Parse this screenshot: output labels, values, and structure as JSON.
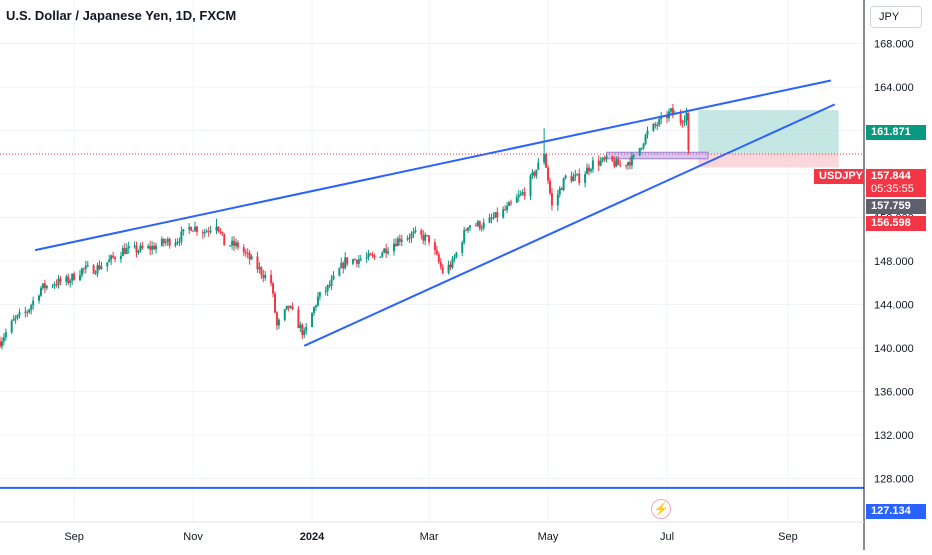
{
  "chart_data": {
    "type": "candlestick",
    "title": "U.S. Dollar / Japanese Yen, 1D, FXCM",
    "currency": "JPY",
    "symbol_label": "USDJPY",
    "ylim": [
      124.0,
      172.0
    ],
    "y_ticks": [
      "168.000",
      "164.000",
      "160.000",
      "156.000",
      "152.000",
      "148.000",
      "144.000",
      "140.000",
      "136.000",
      "132.000",
      "128.000"
    ],
    "y_tick_values": [
      168,
      164,
      160,
      156,
      152,
      148,
      144,
      140,
      136,
      132,
      128
    ],
    "x_range": [
      "2023-07-25",
      "2024-10-10"
    ],
    "x_ticks": [
      {
        "label": "Sep",
        "date": "2023-09-01"
      },
      {
        "label": "Nov",
        "date": "2023-11-01"
      },
      {
        "label": "2024",
        "date": "2024-01-01",
        "bold": true
      },
      {
        "label": "Mar",
        "date": "2024-03-01"
      },
      {
        "label": "May",
        "date": "2024-05-01"
      },
      {
        "label": "Jul",
        "date": "2024-07-01"
      },
      {
        "label": "Sep",
        "date": "2024-09-01"
      }
    ],
    "close_path": [
      [
        "2023-07-25",
        140.6
      ],
      [
        "2023-08-01",
        142.5
      ],
      [
        "2023-08-08",
        143.4
      ],
      [
        "2023-08-15",
        145.5
      ],
      [
        "2023-08-22",
        146.0
      ],
      [
        "2023-08-29",
        146.2
      ],
      [
        "2023-09-05",
        147.2
      ],
      [
        "2023-09-12",
        147.3
      ],
      [
        "2023-09-19",
        148.0
      ],
      [
        "2023-09-26",
        149.0
      ],
      [
        "2023-10-03",
        149.0
      ],
      [
        "2023-10-10",
        149.2
      ],
      [
        "2023-10-17",
        149.7
      ],
      [
        "2023-10-24",
        150.0
      ],
      [
        "2023-10-31",
        151.2
      ],
      [
        "2023-11-07",
        150.7
      ],
      [
        "2023-11-13",
        151.5
      ],
      [
        "2023-11-17",
        149.6
      ],
      [
        "2023-11-24",
        149.4
      ],
      [
        "2023-11-30",
        148.2
      ],
      [
        "2023-12-06",
        147.0
      ],
      [
        "2023-12-11",
        146.0
      ],
      [
        "2023-12-14",
        142.0
      ],
      [
        "2023-12-20",
        143.8
      ],
      [
        "2023-12-28",
        141.2
      ],
      [
        "2024-01-04",
        144.6
      ],
      [
        "2024-01-10",
        145.7
      ],
      [
        "2024-01-18",
        148.0
      ],
      [
        "2024-01-26",
        148.2
      ],
      [
        "2024-02-02",
        148.3
      ],
      [
        "2024-02-09",
        149.3
      ],
      [
        "2024-02-16",
        150.2
      ],
      [
        "2024-02-23",
        150.4
      ],
      [
        "2024-03-01",
        150.0
      ],
      [
        "2024-03-08",
        147.0
      ],
      [
        "2024-03-13",
        147.8
      ],
      [
        "2024-03-21",
        151.4
      ],
      [
        "2024-03-29",
        151.3
      ],
      [
        "2024-04-10",
        152.8
      ],
      [
        "2024-04-19",
        154.4
      ],
      [
        "2024-04-26",
        156.8
      ],
      [
        "2024-04-29",
        158.0
      ],
      [
        "2024-05-03",
        153.0
      ],
      [
        "2024-05-10",
        155.7
      ],
      [
        "2024-05-17",
        155.6
      ],
      [
        "2024-05-24",
        157.0
      ],
      [
        "2024-05-31",
        157.2
      ],
      [
        "2024-06-07",
        156.8
      ],
      [
        "2024-06-14",
        157.4
      ],
      [
        "2024-06-21",
        159.8
      ],
      [
        "2024-06-28",
        160.9
      ],
      [
        "2024-07-03",
        161.7
      ],
      [
        "2024-07-08",
        160.9
      ],
      [
        "2024-07-11",
        161.6
      ],
      [
        "2024-07-12",
        157.8
      ],
      [
        "2024-07-13",
        157.84
      ]
    ],
    "peak_highs": [
      [
        "2023-11-13",
        151.9
      ],
      [
        "2024-04-29",
        160.2
      ],
      [
        "2024-07-03",
        161.95
      ]
    ],
    "trendlines": [
      {
        "from": [
          "2023-08-12",
          149.0
        ],
        "to": [
          "2024-09-23",
          164.6
        ],
        "color": "#2962ff"
      },
      {
        "from": [
          "2023-12-28",
          140.2
        ],
        "to": [
          "2024-09-25",
          162.4
        ],
        "color": "#2962ff"
      }
    ],
    "support_zone": {
      "from": "2024-05-31",
      "to": "2024-07-22",
      "top": 158.0,
      "bottom": 157.4
    },
    "position_tool": {
      "from": "2024-07-17",
      "to": "2024-09-27",
      "entry": 157.844,
      "target": 161.871,
      "stop": 156.598,
      "profit_color": "#b2dfdb",
      "loss_color": "#f8c9cd"
    },
    "horizontal_line": {
      "value": 127.134,
      "color": "#2962ff"
    },
    "price_labels": [
      {
        "value": "161.871",
        "color": "#089981"
      },
      {
        "value": "157.844",
        "color": "#f23645",
        "countdown": "05:35:55",
        "symbol": "USDJPY"
      },
      {
        "value": "157.759",
        "color": "#5d606b"
      },
      {
        "value": "156.598",
        "color": "#f23645"
      },
      {
        "value": "127.134",
        "color": "#2962ff"
      }
    ],
    "colors": {
      "up": "#089981",
      "down": "#f23645",
      "grid": "#f0f3fa"
    },
    "grid": true
  }
}
